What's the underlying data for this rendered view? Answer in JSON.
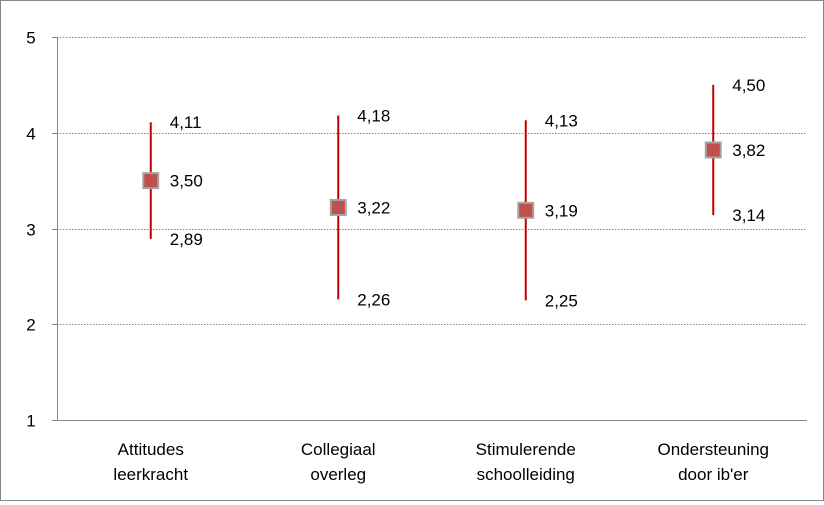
{
  "chart_data": {
    "type": "scatter",
    "subtype": "high-low-mean",
    "title": "",
    "xlabel": "",
    "ylabel": "",
    "ylim": [
      1,
      5
    ],
    "yticks": [
      "1",
      "2",
      "3",
      "4",
      "5"
    ],
    "grid": "horizontal dotted",
    "legend": "none",
    "categories": [
      [
        "Attitudes",
        "leerkracht"
      ],
      [
        "Collegiaal",
        "overleg"
      ],
      [
        "Stimulerende",
        "schoolleiding"
      ],
      [
        "Ondersteuning",
        "door ib'er"
      ]
    ],
    "series": [
      {
        "mean": [
          3.5,
          3.22,
          3.19,
          3.82
        ],
        "high": [
          4.11,
          4.18,
          4.13,
          4.5
        ],
        "low": [
          2.89,
          2.26,
          2.25,
          3.14
        ],
        "mean_labels": [
          "3,50",
          "3,22",
          "3,19",
          "3,82"
        ],
        "high_labels": [
          "4,11",
          "4,18",
          "4,13",
          "4,50"
        ],
        "low_labels": [
          "2,89",
          "2,26",
          "2,25",
          "3,14"
        ]
      }
    ],
    "colors": {
      "marker_fill": "#C0504D",
      "marker_border": "#A5A5A5",
      "range_line": "#C00000",
      "gridline": "#868686",
      "axis": "#868686"
    }
  }
}
